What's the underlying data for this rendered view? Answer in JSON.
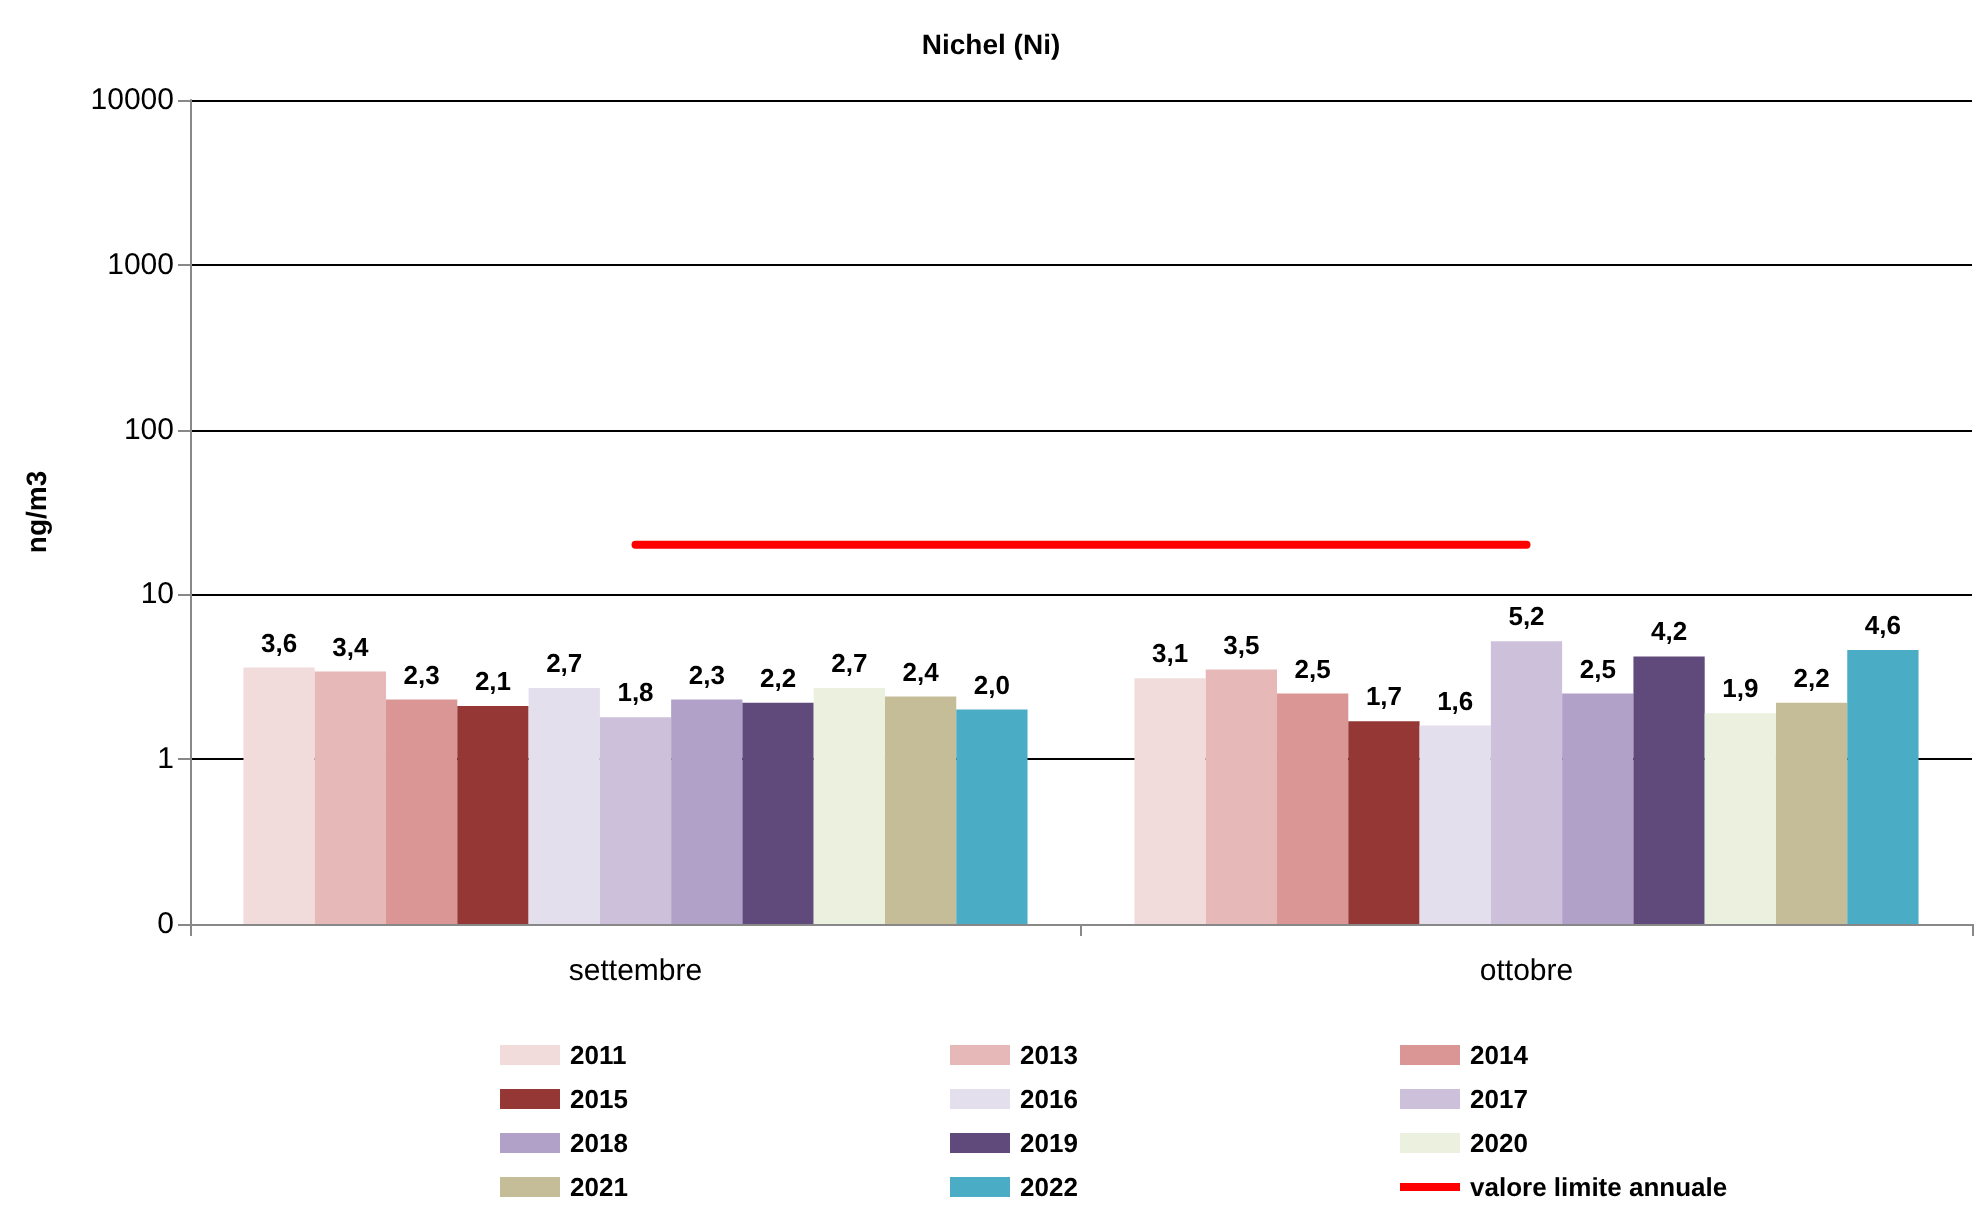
{
  "chart_data": {
    "type": "bar",
    "title": "Nichel (Ni)",
    "ylabel": "ng/m3",
    "categories": [
      "settembre",
      "ottobre"
    ],
    "log": "y",
    "ylim": [
      0.1,
      10000
    ],
    "yticks": [
      {
        "value": 0.1,
        "label": "0"
      },
      1,
      10,
      100,
      1000,
      10000
    ],
    "grid": "y",
    "legend": "bottom",
    "series": [
      {
        "name": "2011",
        "color": "#f2dcdb",
        "values": [
          3.6,
          3.1
        ],
        "value_labels": [
          "3,6",
          "3,1"
        ]
      },
      {
        "name": "2013",
        "color": "#e6b9b8",
        "values": [
          3.4,
          3.5
        ],
        "value_labels": [
          "3,4",
          "3,5"
        ]
      },
      {
        "name": "2014",
        "color": "#d99694",
        "values": [
          2.3,
          2.5
        ],
        "value_labels": [
          "2,3",
          "2,5"
        ]
      },
      {
        "name": "2015",
        "color": "#953735",
        "values": [
          2.1,
          1.7
        ],
        "value_labels": [
          "2,1",
          "1,7"
        ]
      },
      {
        "name": "2016",
        "color": "#e4dfec",
        "values": [
          2.7,
          1.6
        ],
        "value_labels": [
          "2,7",
          "1,6"
        ]
      },
      {
        "name": "2017",
        "color": "#ccc0da",
        "values": [
          1.8,
          5.2
        ],
        "value_labels": [
          "1,8",
          "5,2"
        ]
      },
      {
        "name": "2018",
        "color": "#b1a0c7",
        "values": [
          2.3,
          2.5
        ],
        "value_labels": [
          "2,3",
          "2,5"
        ]
      },
      {
        "name": "2019",
        "color": "#604a7b",
        "values": [
          2.2,
          4.2
        ],
        "value_labels": [
          "2,2",
          "4,2"
        ]
      },
      {
        "name": "2020",
        "color": "#ebf1de",
        "values": [
          2.7,
          1.9
        ],
        "value_labels": [
          "2,7",
          "1,9"
        ]
      },
      {
        "name": "2021",
        "color": "#c4bd97",
        "values": [
          2.4,
          2.2
        ],
        "value_labels": [
          "2,4",
          "2,2"
        ]
      },
      {
        "name": "2022",
        "color": "#4bacc6",
        "values": [
          2.0,
          4.6
        ],
        "value_labels": [
          "2,0",
          "4,6"
        ]
      },
      {
        "name": "valore limite annuale",
        "type": "line",
        "color": "#ff0000",
        "values": [
          20,
          20
        ],
        "marker": "none",
        "line_style": "solid"
      }
    ]
  }
}
